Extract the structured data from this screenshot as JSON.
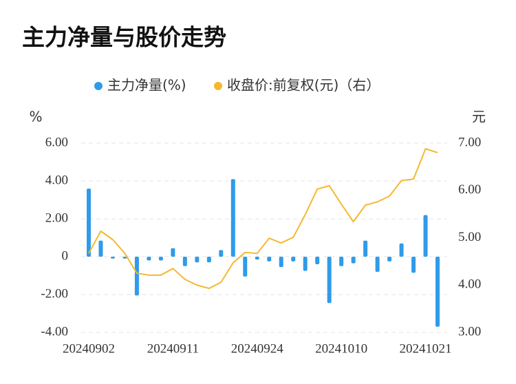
{
  "chart_data": {
    "type": "bar-line",
    "title": "主力净量与股价走势",
    "ylabel": "%",
    "y2label": "元",
    "categories": [
      "20240902",
      null,
      null,
      null,
      null,
      null,
      null,
      "20240911",
      null,
      null,
      null,
      null,
      null,
      null,
      "20240924",
      null,
      null,
      null,
      null,
      null,
      null,
      "20241010",
      null,
      null,
      null,
      null,
      null,
      null,
      "20241021",
      null
    ],
    "series": [
      {
        "name": "主力净量(%)",
        "type": "bar",
        "color": "#2f9bea",
        "axis": "y",
        "values": [
          3.6,
          0.85,
          -0.1,
          -0.1,
          -2.05,
          -0.2,
          -0.2,
          0.45,
          -0.5,
          -0.3,
          -0.3,
          0.35,
          4.1,
          -1.05,
          -0.15,
          -0.25,
          -0.55,
          -0.25,
          -0.75,
          -0.4,
          -2.45,
          -0.5,
          -0.35,
          0.85,
          -0.8,
          -0.25,
          0.7,
          -0.85,
          2.2,
          -3.7
        ]
      },
      {
        "name": "收盘价:前复权(元)（右）",
        "type": "line",
        "color": "#f5b82e",
        "axis": "y2",
        "values": [
          4.67,
          5.14,
          4.96,
          4.67,
          4.25,
          4.21,
          4.21,
          4.35,
          4.12,
          4.0,
          3.93,
          4.06,
          4.47,
          4.69,
          4.67,
          4.99,
          4.89,
          5.01,
          5.49,
          6.03,
          6.1,
          5.71,
          5.34,
          5.69,
          5.76,
          5.88,
          6.21,
          6.24,
          6.88,
          6.8
        ]
      }
    ],
    "ylim": [
      -4,
      6
    ],
    "yticks": [
      {
        "value": -4,
        "label": "-4.00"
      },
      {
        "value": -2,
        "label": "-2.00"
      },
      0,
      {
        "value": 2,
        "label": "2.00"
      },
      {
        "value": 4,
        "label": "4.00"
      },
      {
        "value": 6,
        "label": "6.00"
      }
    ],
    "y2lim": [
      3,
      7
    ],
    "y2ticks": [
      {
        "value": 3,
        "label": "3.00"
      },
      {
        "value": 4,
        "label": "4.00"
      },
      {
        "value": 5,
        "label": "5.00"
      },
      {
        "value": 6,
        "label": "6.00"
      },
      {
        "value": 7,
        "label": "7.00"
      }
    ],
    "grid": true
  }
}
